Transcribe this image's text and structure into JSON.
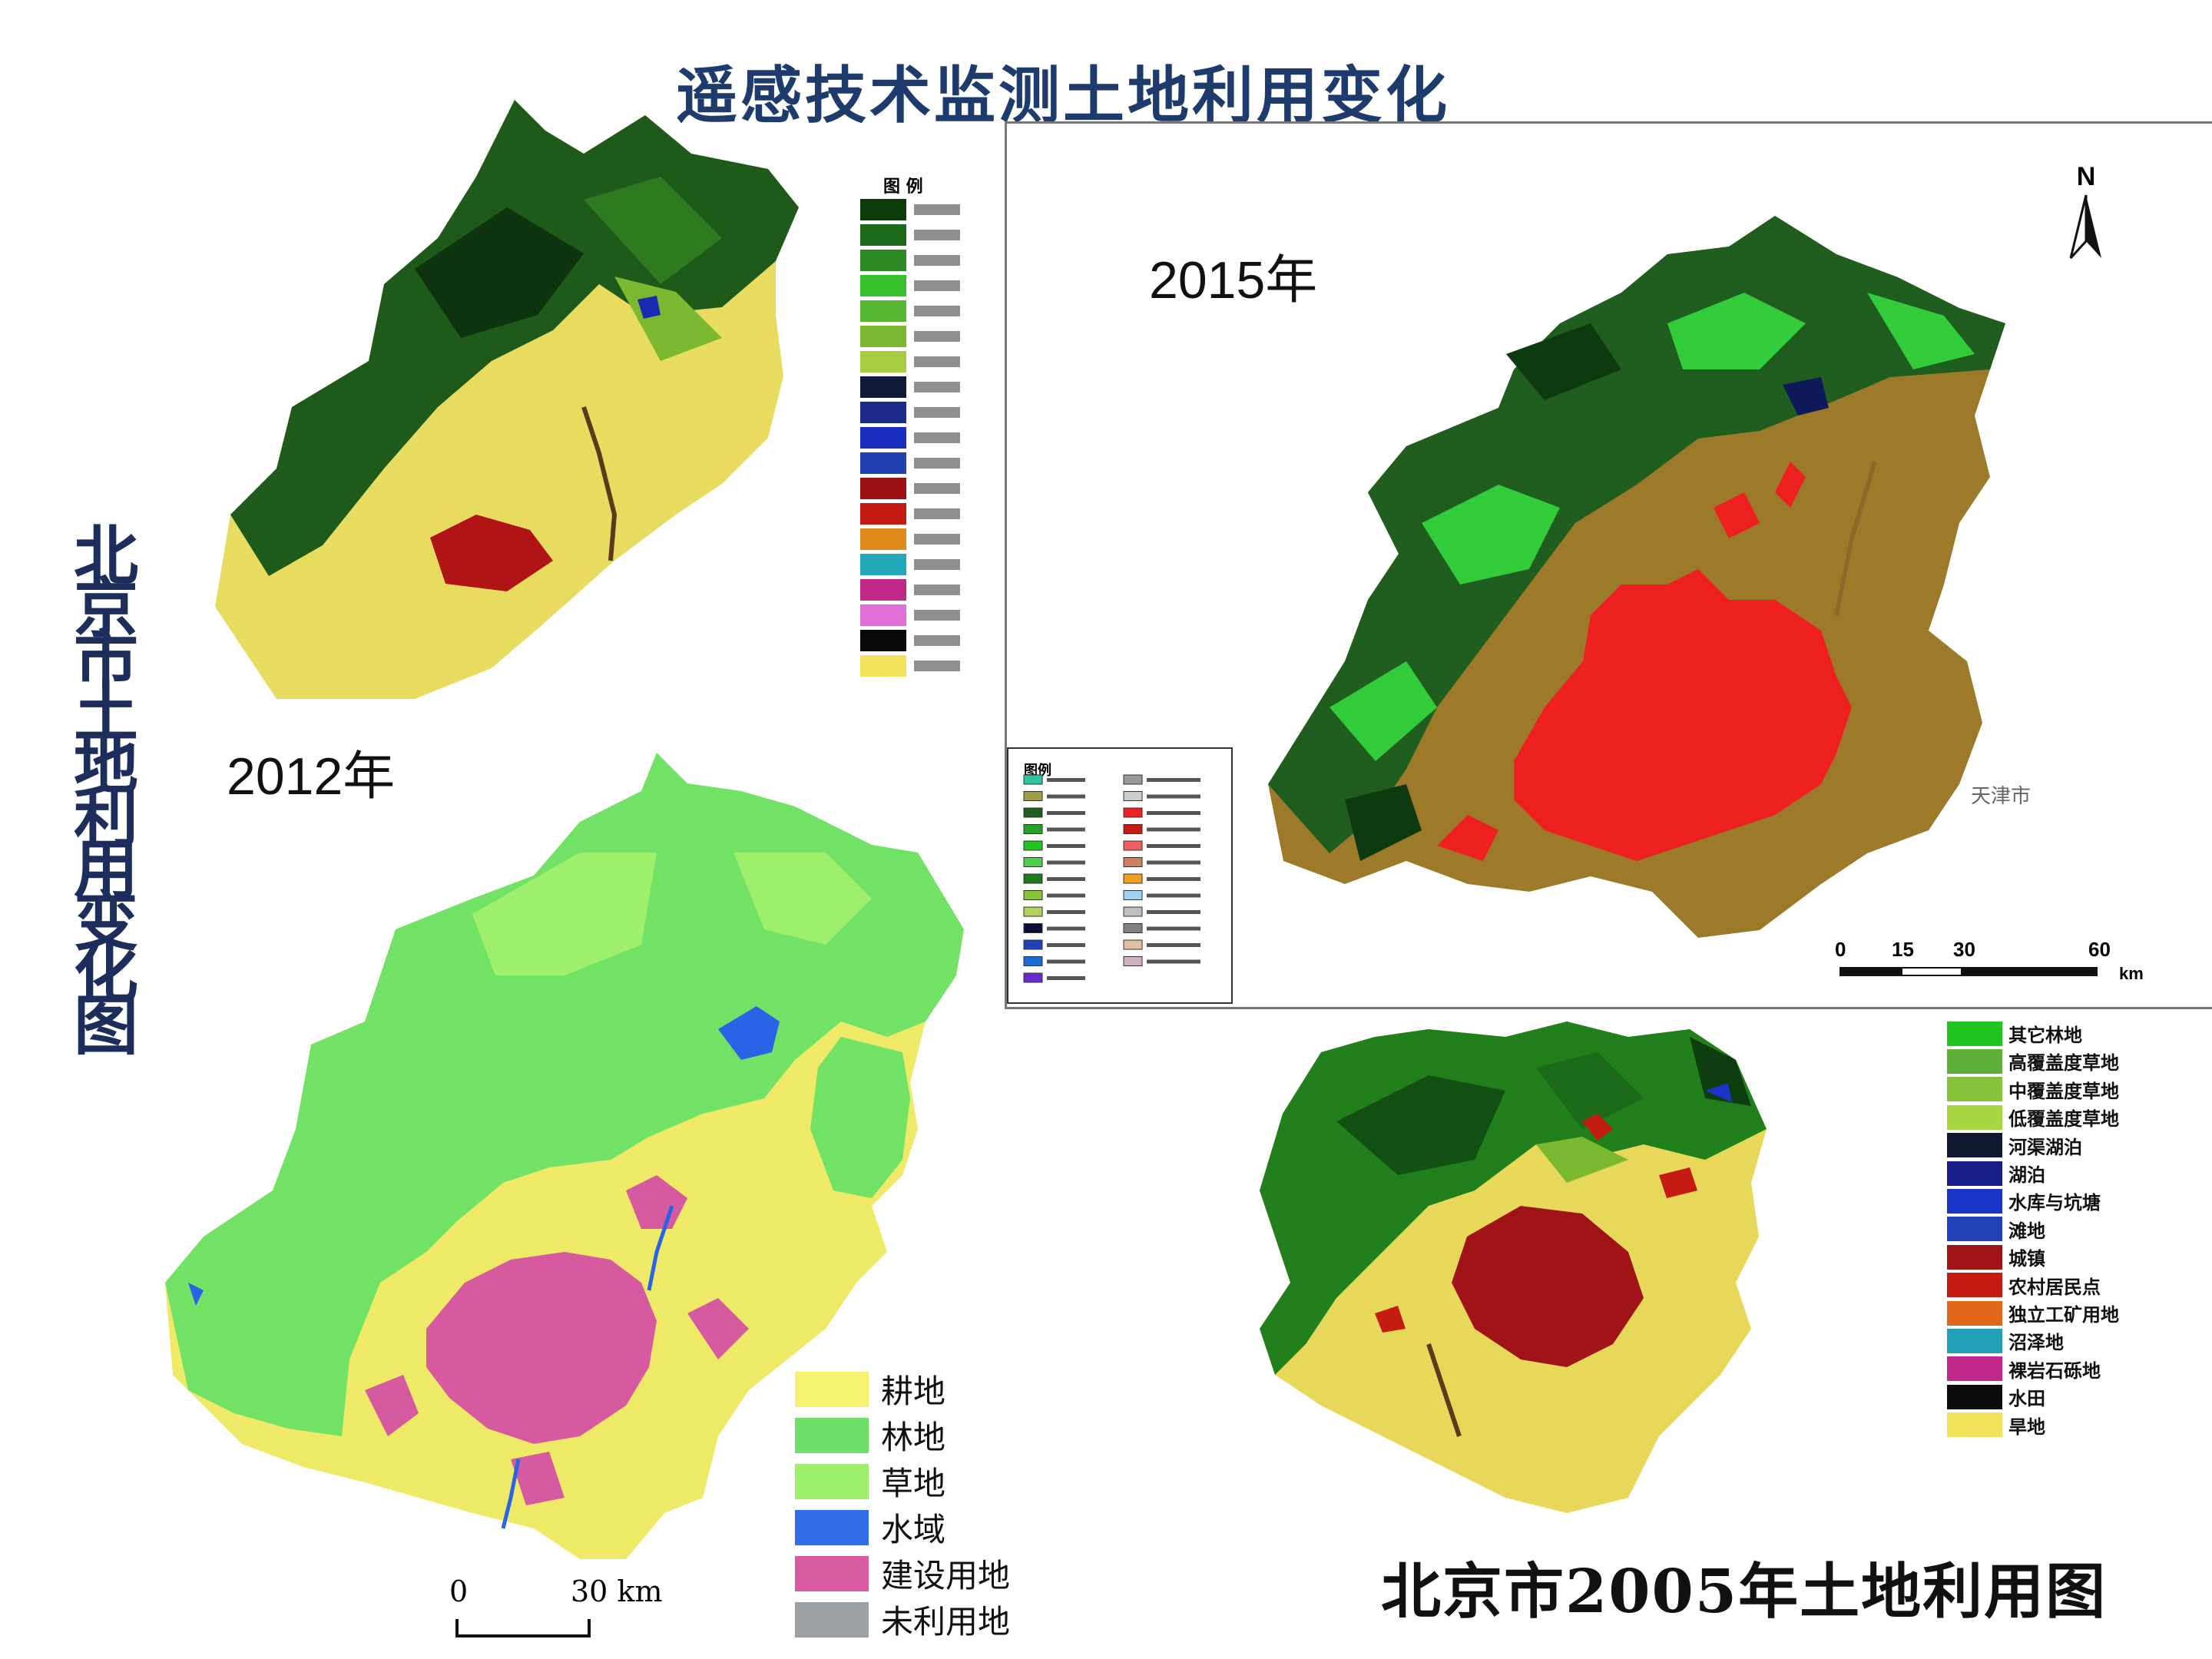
{
  "title_top": "遥感技术监测土地利用变化",
  "vertical_title": [
    "北",
    "京",
    "市",
    "土",
    "地",
    "利",
    "用",
    "变",
    "化",
    "图"
  ],
  "map_2012": {
    "year_label": "2012年",
    "legend": [
      {
        "label": "耕地",
        "color": "#f4f26e"
      },
      {
        "label": "林地",
        "color": "#6ee06a"
      },
      {
        "label": "草地",
        "color": "#9ef06c"
      },
      {
        "label": "水域",
        "color": "#2f6ee8"
      },
      {
        "label": "建设用地",
        "color": "#d95aa0"
      },
      {
        "label": "未利用地",
        "color": "#9aa0a4"
      }
    ],
    "scale": {
      "zero": "0",
      "end": "30 km"
    }
  },
  "map_2015": {
    "year_label": "2015年",
    "north": "N",
    "legend_title": "图例",
    "scale": {
      "t0": "0",
      "t1": "15",
      "t2": "30",
      "t3": "60",
      "unit": "km"
    },
    "place_label": "天津市"
  },
  "map_2005": {
    "bottom_title": "北京市2005年土地利用图",
    "legend": [
      {
        "label": "其它林地",
        "color": "#22c41f"
      },
      {
        "label": "高覆盖度草地",
        "color": "#5fb038"
      },
      {
        "label": "中覆盖度草地",
        "color": "#86c23a"
      },
      {
        "label": "低覆盖度草地",
        "color": "#a8d640"
      },
      {
        "label": "河渠湖泊",
        "color": "#101830"
      },
      {
        "label": "湖泊",
        "color": "#1a1e8a"
      },
      {
        "label": "水库与坑塘",
        "color": "#1b34c8"
      },
      {
        "label": "滩地",
        "color": "#2240b8"
      },
      {
        "label": "城镇",
        "color": "#a01418"
      },
      {
        "label": "农村居民点",
        "color": "#c41c12"
      },
      {
        "label": "独立工矿用地",
        "color": "#e0661a"
      },
      {
        "label": "沼泽地",
        "color": "#22a0b8"
      },
      {
        "label": "裸岩石砾地",
        "color": "#c0288a"
      },
      {
        "label": "水田",
        "color": "#0c0c0c"
      },
      {
        "label": "旱地",
        "color": "#f0e25a"
      }
    ]
  },
  "map_old_top": {
    "legend_colors": [
      "#0c3c0c",
      "#1c6a1a",
      "#2c8a24",
      "#34c12c",
      "#58b834",
      "#7ab830",
      "#a8cc40",
      "#101a38",
      "#1c2a8a",
      "#1c2ec0",
      "#2240b0",
      "#9a1014",
      "#c41c12",
      "#e08a1a",
      "#22a8b8",
      "#c0288a",
      "#e070d8",
      "#0a0a0a",
      "#f0e25a"
    ]
  }
}
